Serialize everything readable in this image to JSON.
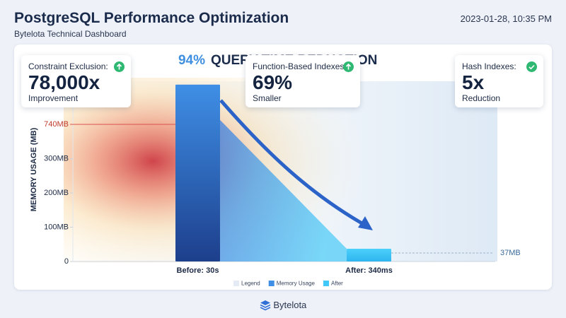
{
  "header": {
    "title": "PostgreSQL Performance Optimization",
    "subtitle": "Bytelota Technical Dashboard",
    "timestamp": "2023-01-28, 10:35 PM"
  },
  "metrics": [
    {
      "label": "Constraint Exclusion:",
      "value": "78,000x",
      "caption": "Improvement"
    },
    {
      "label": "Function-Based Indexes:",
      "value": "69%",
      "caption": "Smaller"
    },
    {
      "label": "Hash Indexes:",
      "value": "5x",
      "caption": "Reduction"
    }
  ],
  "chart_data": {
    "type": "bar",
    "title_highlight": "94%",
    "title": "QUERY TIME REDUCTION",
    "y_label": "MEMORY USAGE (MB)",
    "categories": [
      "Before: 30s",
      "After: 340ms"
    ],
    "series": [
      {
        "name": "Memory Usage",
        "color": "#3f8fe6",
        "values": [
          1250,
          null
        ]
      },
      {
        "name": "After",
        "color": "#40c8f8",
        "values": [
          null,
          37
        ],
        "value_labels": [
          null,
          "37MB"
        ]
      }
    ],
    "legend_title": "Legend",
    "ylim": [
      0,
      1270
    ],
    "yticks": [
      0,
      {
        "value": 100,
        "label": "100MB"
      },
      {
        "value": 200,
        "label": "200MB"
      },
      {
        "value": 300,
        "label": "300MB"
      },
      {
        "value": 740,
        "label": "740MB"
      }
    ]
  },
  "footer": {
    "brand": "Bytelota"
  }
}
